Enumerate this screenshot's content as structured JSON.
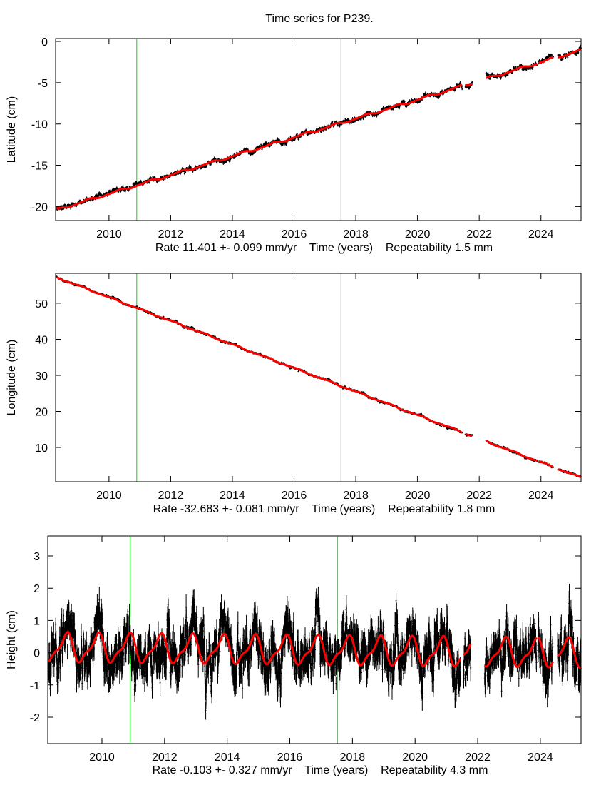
{
  "chart_data": {
    "type": "scatter",
    "title": "Time series for P239.",
    "panels": [
      {
        "ylabel": "Latitude (cm)",
        "xlabel": "Rate 11.401 +- 0.099 mm/yr    Time (years)    Repeatability 1.5 mm",
        "xlim": [
          2008.27,
          2025.3
        ],
        "ylim": [
          -21.7,
          0.35
        ],
        "xticks": [
          2010,
          2012,
          2014,
          2016,
          2018,
          2020,
          2022,
          2024
        ],
        "yticks": [
          0,
          -5,
          -10,
          -15,
          -20
        ],
        "model": {
          "t0": 2008.3,
          "y0": -20.4,
          "rate_cm_per_yr": 1.1401,
          "seasonal_amp": 0.12,
          "seasonal_phase": 0.3
        },
        "noise_cm": 0.15,
        "error_cm": 0.12,
        "vlines": [
          {
            "x": 2010.9,
            "color": "#00dd00"
          },
          {
            "x": 2017.52,
            "color": "#999999"
          }
        ]
      },
      {
        "ylabel": "Longitude (cm)",
        "xlabel": "Rate -32.683 +- 0.081 mm/yr    Time (years)    Repeatability 1.8 mm",
        "xlim": [
          2008.27,
          2025.3
        ],
        "ylim": [
          0.5,
          58.3
        ],
        "xticks": [
          2010,
          2012,
          2014,
          2016,
          2018,
          2020,
          2022,
          2024
        ],
        "yticks": [
          50,
          40,
          30,
          20,
          10
        ],
        "model": {
          "t0": 2008.3,
          "y0": 57.2,
          "rate_cm_per_yr": -3.2683,
          "seasonal_amp": 0.15,
          "seasonal_phase": 0.1
        },
        "noise_cm": 0.18,
        "error_cm": 0.15,
        "vlines": [
          {
            "x": 2010.9,
            "color": "#00dd00"
          },
          {
            "x": 2017.52,
            "color": "#999999"
          }
        ]
      },
      {
        "ylabel": "Height (cm)",
        "xlabel": "Rate -0.103 +- 0.327 mm/yr    Time (years)    Repeatability 4.3 mm",
        "xlim": [
          2008.27,
          2025.3
        ],
        "ylim": [
          -2.82,
          3.62
        ],
        "xticks": [
          2010,
          2012,
          2014,
          2016,
          2018,
          2020,
          2022,
          2024
        ],
        "yticks": [
          3,
          2,
          1,
          0,
          -1,
          -2
        ],
        "model": {
          "t0": 2008.3,
          "y0": 0.15,
          "rate_cm_per_yr": -0.0103,
          "seasonal_amp": 0.4,
          "seasonal_phase": 0.85
        },
        "noise_cm": 0.38,
        "error_cm": 0.3,
        "vlines": [
          {
            "x": 2010.9,
            "color": "#00dd00"
          },
          {
            "x": 2017.52,
            "color": "#00dd00"
          }
        ]
      }
    ],
    "data_spans": [
      [
        2008.3,
        2021.45
      ],
      [
        2021.55,
        2021.78
      ],
      [
        2022.22,
        2023.88
      ],
      [
        2023.92,
        2024.4
      ],
      [
        2024.55,
        2025.3
      ]
    ],
    "colors": {
      "data": "#000000",
      "model": "#ff0000",
      "frame": "#000000"
    }
  }
}
